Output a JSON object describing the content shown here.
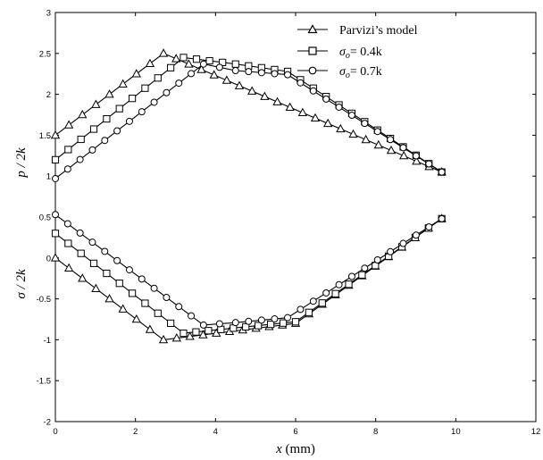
{
  "chart_data": {
    "type": "line",
    "x_axis": {
      "label_var": "x",
      "label_unit": " (mm)",
      "range": [
        0,
        12
      ],
      "ticks": [
        0,
        2,
        4,
        6,
        8,
        10,
        12
      ]
    },
    "y_axis": {
      "range": [
        -2,
        3
      ],
      "ticks": [
        -2,
        -1.5,
        -1,
        -0.5,
        0,
        0.5,
        1,
        1.5,
        2,
        2.5,
        3
      ],
      "label_upper": "p / 2k",
      "label_lower": "σ / 2k"
    },
    "legend": {
      "placement": "top-right",
      "entries": [
        {
          "series": "parvizi",
          "text": "Parvizi’s model"
        },
        {
          "series": "s04",
          "sym": "σ",
          "sub": "o",
          "rest": "= 0.4k"
        },
        {
          "series": "s07",
          "sym": "σ",
          "sub": "o",
          "rest": "= 0.7k"
        }
      ]
    },
    "series": [
      {
        "id": "parvizi-p",
        "name": "Parvizi’s model",
        "marker": "triangle",
        "points": [
          [
            0,
            1.5
          ],
          [
            2.7,
            2.5
          ],
          [
            9.65,
            1.05
          ]
        ]
      },
      {
        "id": "s04-p",
        "name": "σo= 0.4k",
        "marker": "square",
        "points": [
          [
            0,
            1.2
          ],
          [
            3.2,
            2.45
          ],
          [
            4.5,
            2.37
          ],
          [
            5.8,
            2.28
          ],
          [
            9.65,
            1.05
          ]
        ]
      },
      {
        "id": "s07-p",
        "name": "σo= 0.7k",
        "marker": "circle",
        "points": [
          [
            0,
            0.97
          ],
          [
            3.7,
            2.37
          ],
          [
            4.5,
            2.29
          ],
          [
            5.8,
            2.24
          ],
          [
            9.65,
            1.05
          ]
        ]
      },
      {
        "id": "parvizi-s",
        "name": "Parvizi’s model",
        "marker": "triangle",
        "points": [
          [
            0,
            0
          ],
          [
            2.7,
            -1
          ],
          [
            6,
            -0.8
          ],
          [
            9.65,
            0.48
          ]
        ]
      },
      {
        "id": "s04-s",
        "name": "σo= 0.4k",
        "marker": "square",
        "points": [
          [
            0,
            0.3
          ],
          [
            3.2,
            -0.92
          ],
          [
            6,
            -0.78
          ],
          [
            9.65,
            0.48
          ]
        ]
      },
      {
        "id": "s07-s",
        "name": "σo= 0.7k",
        "marker": "circle",
        "points": [
          [
            0,
            0.53
          ],
          [
            3.7,
            -0.82
          ],
          [
            4.5,
            -0.79
          ],
          [
            5.8,
            -0.73
          ],
          [
            9.65,
            0.48
          ]
        ]
      }
    ]
  }
}
